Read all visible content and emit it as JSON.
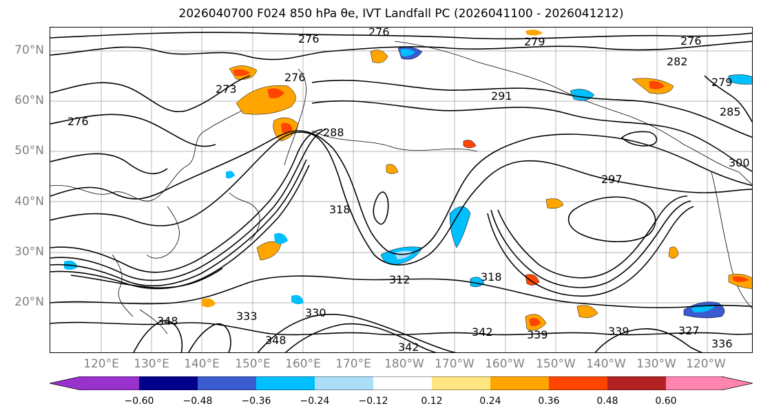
{
  "title": "2026040700 F024 850 hPa θe, IVT Landfall PC (2026041100 - 2026041212)",
  "lat_labels": [
    "70°N",
    "60°N",
    "50°N",
    "40°N",
    "30°N",
    "20°N"
  ],
  "lon_labels": [
    "120°E",
    "130°E",
    "140°E",
    "150°E",
    "160°E",
    "170°E",
    "180°W",
    "170°W",
    "160°W",
    "150°W",
    "140°W",
    "130°W",
    "120°W"
  ],
  "contour_labels": [
    "276",
    "276",
    "276",
    "279",
    "276",
    "273",
    "276",
    "282",
    "291",
    "288",
    "279",
    "285",
    "297",
    "300",
    "318",
    "312",
    "318",
    "333",
    "330",
    "342",
    "342",
    "339",
    "339",
    "348",
    "348",
    "336",
    "327"
  ],
  "colorbar": {
    "ticks": [
      "−0.60",
      "−0.48",
      "−0.36",
      "−0.24",
      "−0.12",
      "0.12",
      "0.24",
      "0.36",
      "0.48",
      "0.60"
    ],
    "colors": [
      "#9932cc",
      "#00008b",
      "#3a5bd0",
      "#00bfff",
      "#aadff7",
      "#ffffff",
      "#ffe680",
      "#ffa500",
      "#ff4500",
      "#b22222",
      "#ff85b0",
      "#ff85b0"
    ]
  }
}
